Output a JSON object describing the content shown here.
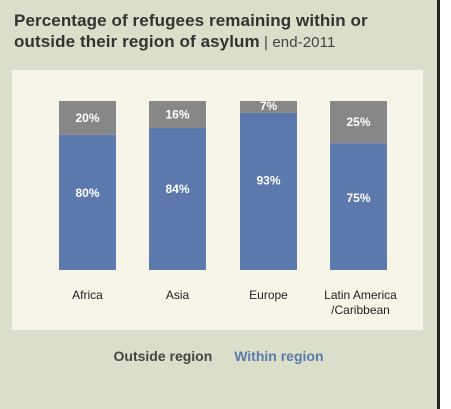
{
  "title": {
    "main": "Percentage of refugees remaining within or outside their region of asylum",
    "separator": " | ",
    "sub": "end-2011"
  },
  "colors": {
    "outside": "#878787",
    "within": "#5b79ad",
    "outside_legend_text": "#444444",
    "within_legend_text": "#5b79ad"
  },
  "chart_data": {
    "type": "bar",
    "stacked": true,
    "categories": [
      "Africa",
      "Asia",
      "Europe",
      "Latin America /Caribbean"
    ],
    "category_lines": [
      [
        "Africa"
      ],
      [
        "Asia"
      ],
      [
        "Europe"
      ],
      [
        "Latin America",
        "/Caribbean"
      ]
    ],
    "series": [
      {
        "name": "Within region",
        "values": [
          80,
          84,
          93,
          75
        ],
        "labels": [
          "80%",
          "84%",
          "93%",
          "75%"
        ]
      },
      {
        "name": "Outside region",
        "values": [
          20,
          16,
          7,
          25
        ],
        "labels": [
          "20%",
          "16%",
          "7%",
          "25%"
        ]
      }
    ],
    "ylim": [
      0,
      100
    ],
    "grid": false,
    "legend_position": "bottom"
  },
  "legend": {
    "outside_label": "Outside region",
    "within_label": "Within region"
  }
}
